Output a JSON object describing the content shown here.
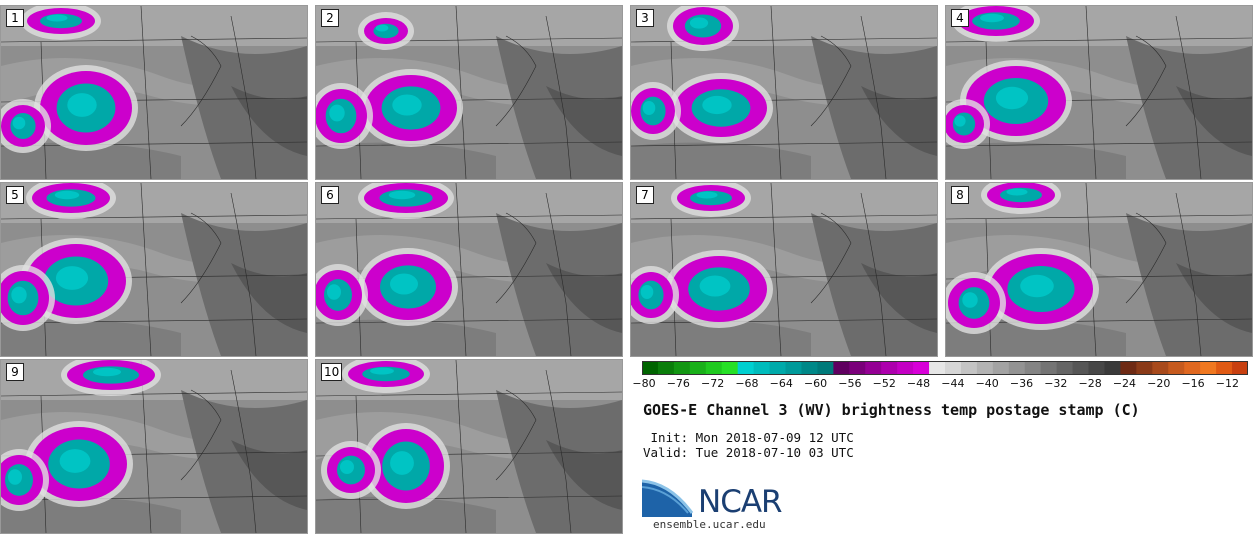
{
  "panels": [
    {
      "label": "1"
    },
    {
      "label": "2"
    },
    {
      "label": "3"
    },
    {
      "label": "4"
    },
    {
      "label": "5"
    },
    {
      "label": "6"
    },
    {
      "label": "7"
    },
    {
      "label": "8"
    },
    {
      "label": "9"
    },
    {
      "label": "10"
    }
  ],
  "colorbar": {
    "colors": [
      "#006400",
      "#0a7d0a",
      "#129612",
      "#19b019",
      "#1fc91f",
      "#26e026",
      "#00d0d0",
      "#00bcbc",
      "#00aaaa",
      "#009a9a",
      "#008888",
      "#007a7a",
      "#600060",
      "#7a007a",
      "#940094",
      "#ad00ad",
      "#c400c4",
      "#d800d8",
      "#e6e6e6",
      "#d6d6d6",
      "#c4c4c4",
      "#b3b3b3",
      "#a3a3a3",
      "#939393",
      "#848484",
      "#747474",
      "#656565",
      "#565656",
      "#474747",
      "#3a3a3a",
      "#6e2a14",
      "#8a3a18",
      "#a84a1c",
      "#c65a1e",
      "#e06820",
      "#f07820",
      "#e05a14",
      "#c84010"
    ],
    "tick_labels": [
      "−80",
      "−76",
      "−72",
      "−68",
      "−64",
      "−60",
      "−56",
      "−52",
      "−48",
      "−44",
      "−40",
      "−36",
      "−32",
      "−28",
      "−24",
      "−20",
      "−16",
      "−12"
    ]
  },
  "title": "GOES-E Channel 3 (WV) brightness temp postage stamp (C)",
  "init_line": " Init: Mon 2018-07-09 12 UTC",
  "valid_line": "Valid: Tue 2018-07-10 03 UTC",
  "logo_text": "NCAR",
  "url": "ensemble.ucar.edu"
}
